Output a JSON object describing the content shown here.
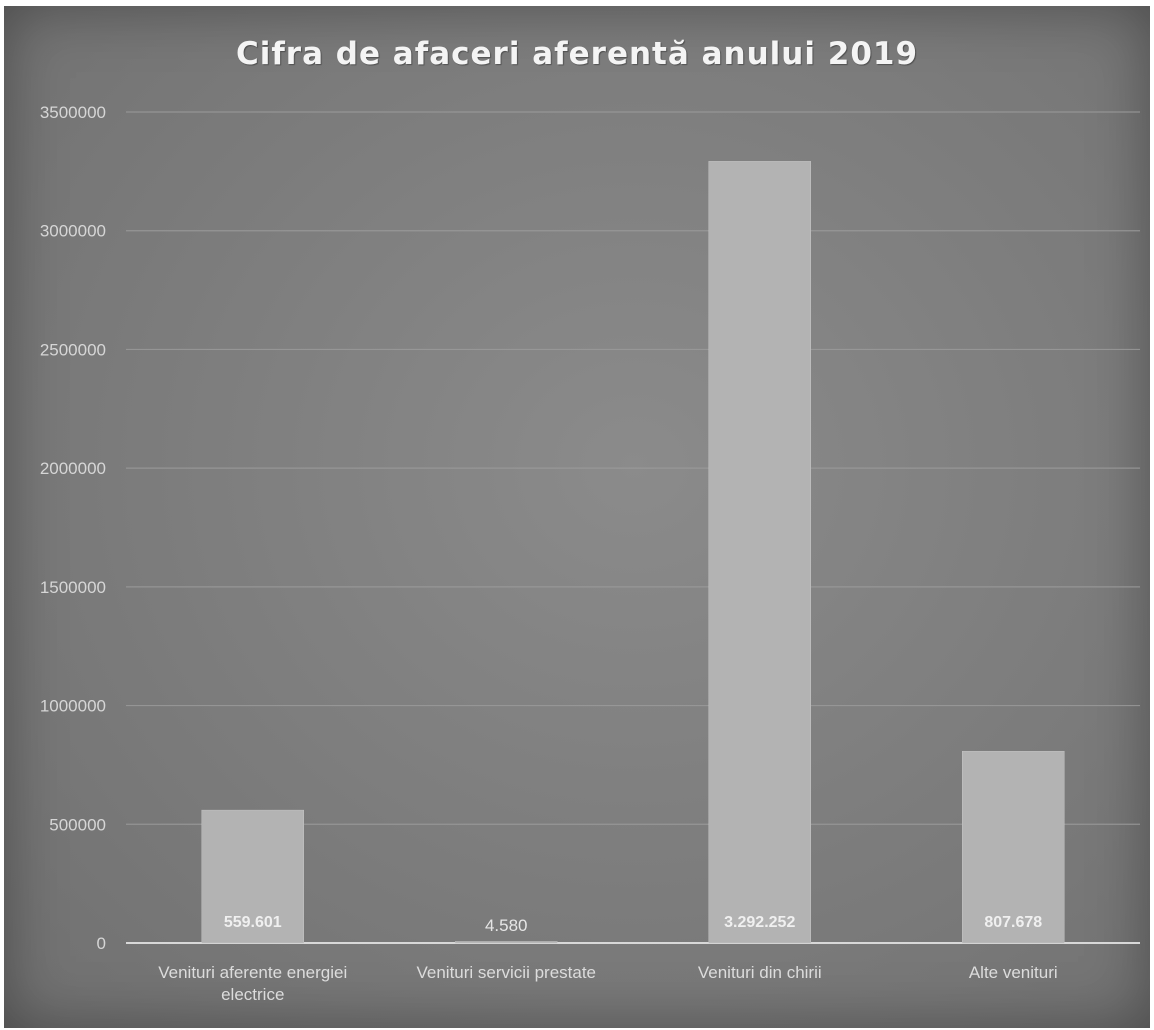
{
  "chart_data": {
    "type": "bar",
    "title": "Cifra de afaceri aferentă anului 2019",
    "xlabel": "",
    "ylabel": "",
    "categories": [
      [
        "Venituri aferente energiei",
        "electrice"
      ],
      [
        "Venituri servicii prestate"
      ],
      [
        "Venituri din chirii"
      ],
      [
        "Alte venituri"
      ]
    ],
    "values": [
      559601,
      4580,
      3292252,
      807678
    ],
    "data_labels": [
      "559.601",
      "4.580",
      "3.292.252",
      "807.678"
    ],
    "ylim": [
      0,
      3500000
    ],
    "yticks": [
      0,
      500000,
      1000000,
      1500000,
      2000000,
      2500000,
      3000000,
      3500000
    ],
    "ytick_labels": [
      "0",
      "500000",
      "1000000",
      "1500000",
      "2000000",
      "2500000",
      "3000000",
      "3500000"
    ],
    "grid": true,
    "legend": "none",
    "colors": {
      "bar": "#b3b3b3",
      "gridline": "#9c9c9c",
      "axis": "#d8d8d8",
      "background": "#7f7f7f"
    }
  }
}
